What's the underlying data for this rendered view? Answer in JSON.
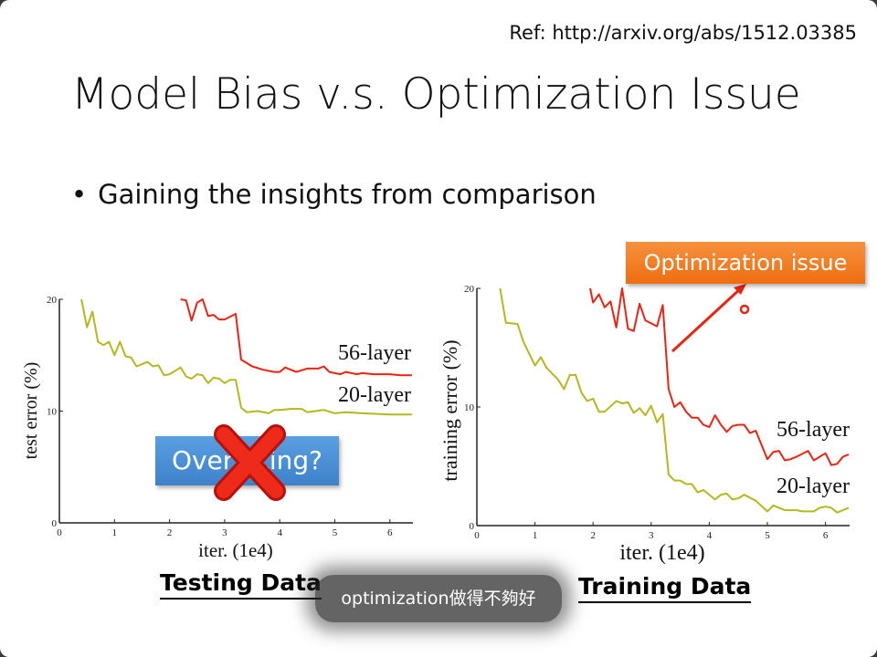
{
  "slide": {
    "ref": "Ref: http://arxiv.org/abs/1512.03385",
    "title": "Model Bias v.s. Optimization Issue",
    "bullet": "Gaining the insights from comparison",
    "callout_optimization": "Optimization issue",
    "callout_overfitting": "Overfitting?",
    "caption_left": "Testing Data",
    "caption_right": "Training Data",
    "subtitle": "optimization做得不夠好",
    "colors": {
      "red": "#ee2211",
      "olive": "#b5b81c",
      "orange": "#f08020",
      "blue": "#4a90d9"
    }
  },
  "chart_data": [
    {
      "type": "line",
      "title": "Testing Data",
      "xlabel": "iter. (1e4)",
      "ylabel": "test error (%)",
      "xlim": [
        0,
        6.4
      ],
      "ylim": [
        0,
        20
      ],
      "xticks": [
        "0",
        "1",
        "2",
        "3",
        "4",
        "5",
        "6"
      ],
      "yticks": [
        "0",
        "10",
        "20"
      ],
      "series": [
        {
          "name": "56-layer",
          "color": "#ee2211",
          "x": [
            2.2,
            2.3,
            2.4,
            2.5,
            2.6,
            2.7,
            2.8,
            2.9,
            3.0,
            3.2,
            3.3,
            3.5,
            3.7,
            3.9,
            4.0,
            4.1,
            4.3,
            4.5,
            4.7,
            4.8,
            4.9,
            5.1,
            5.2,
            5.4,
            5.5,
            5.7,
            6.0,
            6.2,
            6.4
          ],
          "y": [
            20,
            19.9,
            18.1,
            19.7,
            20,
            18.5,
            18.6,
            18.2,
            18.2,
            18.7,
            14.6,
            14,
            13.7,
            13.5,
            13.5,
            13.9,
            13.5,
            13.8,
            13.8,
            14,
            13.5,
            13.3,
            13.5,
            13.3,
            13.4,
            13.3,
            13.3,
            13.2,
            13.2
          ]
        },
        {
          "name": "20-layer",
          "color": "#b5b81c",
          "x": [
            0.4,
            0.5,
            0.6,
            0.7,
            0.8,
            0.9,
            1.0,
            1.1,
            1.2,
            1.3,
            1.4,
            1.6,
            1.7,
            1.8,
            1.9,
            2.0,
            2.2,
            2.3,
            2.4,
            2.5,
            2.6,
            2.7,
            2.8,
            2.9,
            3.0,
            3.1,
            3.2,
            3.3,
            3.4,
            3.6,
            3.8,
            3.9,
            4.0,
            4.2,
            4.4,
            4.5,
            4.8,
            5.0,
            5.2,
            5.5,
            6.0,
            6.4
          ],
          "y": [
            20,
            17.5,
            18.9,
            16.2,
            15.9,
            16.2,
            15,
            16.2,
            14.9,
            14.8,
            14,
            14.4,
            14,
            14.1,
            13.2,
            13.3,
            13.9,
            13.1,
            12.9,
            13.3,
            13.2,
            12.5,
            13,
            12.9,
            12.5,
            12.8,
            12.8,
            10.3,
            9.9,
            10,
            9.8,
            10.1,
            10.1,
            10.2,
            10.2,
            9.9,
            10.1,
            9.8,
            9.9,
            9.8,
            9.7,
            9.7
          ]
        }
      ]
    },
    {
      "type": "line",
      "title": "Training Data",
      "xlabel": "iter. (1e4)",
      "ylabel": "training error (%)",
      "xlim": [
        0,
        6.4
      ],
      "ylim": [
        0,
        20
      ],
      "xticks": [
        "0",
        "1",
        "2",
        "3",
        "4",
        "5",
        "6"
      ],
      "yticks": [
        "0",
        "10",
        "20"
      ],
      "series": [
        {
          "name": "56-layer",
          "color": "#ee2211",
          "x": [
            1.95,
            2.0,
            2.1,
            2.2,
            2.3,
            2.4,
            2.5,
            2.6,
            2.7,
            2.8,
            2.9,
            3.1,
            3.2,
            3.3,
            3.4,
            3.5,
            3.6,
            3.7,
            3.8,
            3.9,
            4.0,
            4.1,
            4.2,
            4.3,
            4.4,
            4.5,
            4.6,
            4.7,
            4.8,
            5.0,
            5.1,
            5.2,
            5.3,
            5.4,
            5.5,
            5.7,
            5.8,
            6.0,
            6.1,
            6.2,
            6.3,
            6.4
          ],
          "y": [
            20,
            18.8,
            19.5,
            18.4,
            18.9,
            16.7,
            20,
            16.6,
            16.4,
            18.7,
            17.3,
            16.8,
            18.6,
            11.5,
            10,
            10.4,
            9.6,
            9.1,
            9.1,
            8.5,
            8.3,
            9.3,
            8.5,
            7.9,
            8.4,
            8.5,
            8.5,
            7.8,
            8,
            5.6,
            6.2,
            6.3,
            5.5,
            5.6,
            5.8,
            6.3,
            5.5,
            6.1,
            5.1,
            5.2,
            5.8,
            6
          ]
        },
        {
          "name": "20-layer",
          "color": "#b5b81c",
          "x": [
            0.4,
            0.5,
            0.7,
            0.8,
            0.9,
            1.0,
            1.1,
            1.2,
            1.4,
            1.5,
            1.6,
            1.7,
            1.8,
            1.9,
            2.0,
            2.1,
            2.2,
            2.4,
            2.5,
            2.6,
            2.7,
            2.8,
            2.9,
            3.0,
            3.1,
            3.2,
            3.3,
            3.4,
            3.5,
            3.6,
            3.7,
            3.8,
            3.9,
            4.1,
            4.2,
            4.3,
            4.4,
            4.5,
            4.6,
            4.8,
            5.0,
            5.1,
            5.3,
            5.5,
            5.6,
            5.8,
            5.9,
            6.0,
            6.1,
            6.2,
            6.4
          ],
          "y": [
            20,
            17.1,
            17,
            15.5,
            14.5,
            13.5,
            14.2,
            13.3,
            12.3,
            11.5,
            12.7,
            12.7,
            11.2,
            10.5,
            10.7,
            9.6,
            9.6,
            10.5,
            10.3,
            10.4,
            9.5,
            9.9,
            9.3,
            10.1,
            8.7,
            9.4,
            4.3,
            3.8,
            3.8,
            3.5,
            3.5,
            2.8,
            3,
            2.2,
            2.6,
            2.7,
            2.2,
            2.3,
            2.6,
            2.1,
            1.2,
            1.7,
            1.3,
            1.3,
            1.2,
            1.2,
            1.5,
            1.6,
            1.5,
            1.1,
            1.5
          ]
        }
      ]
    }
  ]
}
